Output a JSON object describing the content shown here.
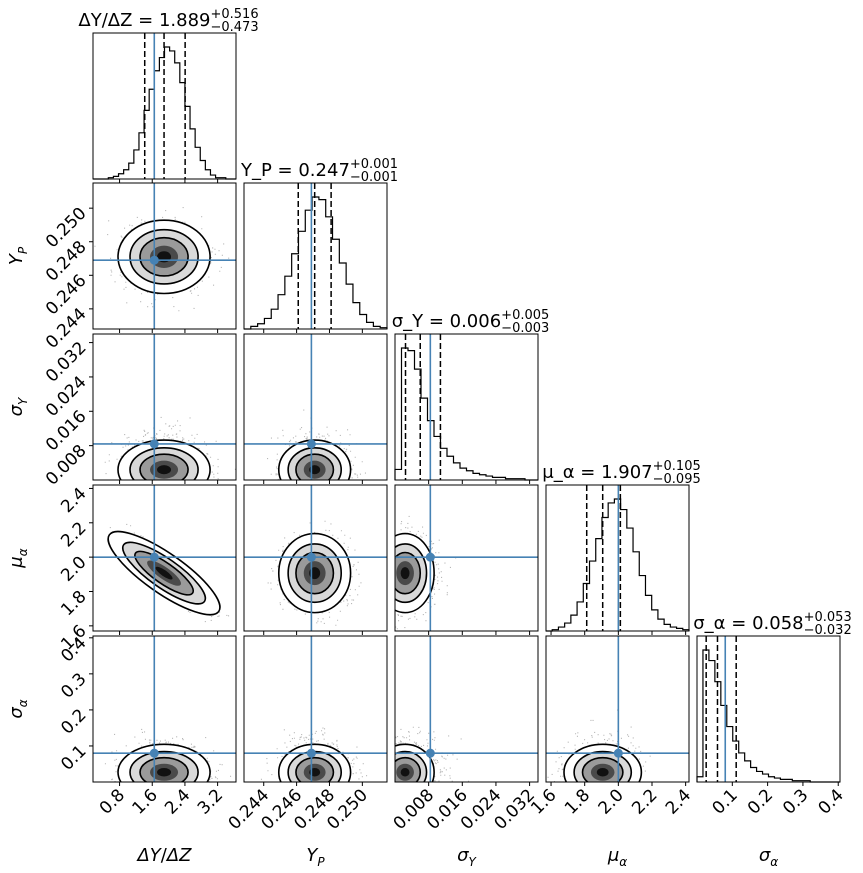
{
  "chart_data": {
    "type": "corner",
    "colors": {
      "truth": "#4682b4",
      "ink": "#000000",
      "scatter": "#000000",
      "background": "#ffffff"
    },
    "parameters": [
      {
        "key": "dY_dZ",
        "label": "ΔY/ΔZ",
        "label_html": "<tspan font-style='italic'>ΔY</tspan>/<tspan font-style='italic'>ΔZ</tspan>",
        "range": [
          0.15,
          3.65
        ],
        "ticks": [
          "0.8",
          "1.6",
          "2.4",
          "3.2"
        ],
        "tick_values": [
          0.8,
          1.6,
          2.4,
          3.2
        ],
        "truth": 1.65,
        "median": 1.889,
        "q_low": 1.416,
        "q_high": 2.405,
        "sigma": 0.49,
        "title_main": "ΔY/ΔZ = 1.889",
        "title_sup": "+0.516",
        "title_sub": "−0.473",
        "hist": [
          0,
          0,
          0,
          1,
          2,
          4,
          7,
          12,
          22,
          35,
          52,
          68,
          82,
          92,
          100,
          97,
          88,
          73,
          55,
          38,
          24,
          14,
          7,
          3,
          1,
          1,
          0,
          0
        ]
      },
      {
        "key": "Y_P",
        "label": "Y_P",
        "label_html": "<tspan font-style='italic'>Y</tspan><tspan font-size='12' dy='5' font-style='italic'>P</tspan>",
        "range": [
          0.2428,
          0.2515
        ],
        "ticks": [
          "0.244",
          "0.246",
          "0.248",
          "0.250"
        ],
        "tick_values": [
          0.244,
          0.246,
          0.248,
          0.25
        ],
        "truth": 0.2469,
        "median": 0.2471,
        "q_low": 0.2461,
        "q_high": 0.2481,
        "sigma": 0.00095,
        "title_main": "Y_P = 0.247",
        "title_sup": "+0.001",
        "title_sub": "−0.001",
        "hist": [
          0,
          2,
          4,
          8,
          15,
          26,
          40,
          57,
          74,
          90,
          100,
          98,
          85,
          68,
          50,
          34,
          20,
          11,
          5,
          2,
          1
        ]
      },
      {
        "key": "sigma_Y",
        "label": "σ_Y",
        "label_html": "<tspan font-style='italic'>σ</tspan><tspan font-size='12' dy='5' font-style='italic'>Y</tspan>",
        "range": [
          0.0,
          0.034
        ],
        "ticks": [
          "0.008",
          "0.016",
          "0.024",
          "0.032"
        ],
        "tick_values": [
          0.008,
          0.016,
          0.024,
          0.032
        ],
        "truth": 0.0084,
        "median": 0.006,
        "q_low": 0.0025,
        "q_high": 0.0108,
        "sigma": 0.004,
        "title_main": "σ_Y = 0.006",
        "title_sup": "+0.005",
        "title_sub": "−0.003",
        "hist": [
          8,
          100,
          98,
          84,
          62,
          45,
          33,
          24,
          18,
          13,
          9,
          7,
          5,
          4,
          3,
          2,
          2,
          1,
          1,
          1,
          0,
          0
        ]
      },
      {
        "key": "mu_alpha",
        "label": "μ_α",
        "label_html": "<tspan font-style='italic'>μ</tspan><tspan font-size='12' dy='5' font-style='italic'>α</tspan>",
        "range": [
          1.57,
          2.42
        ],
        "ticks": [
          "1.6",
          "1.8",
          "2.0",
          "2.2",
          "2.4"
        ],
        "tick_values": [
          1.6,
          1.8,
          2.0,
          2.2,
          2.4
        ],
        "truth": 2.0,
        "median": 1.907,
        "q_low": 1.812,
        "q_high": 2.012,
        "sigma": 0.1,
        "title_main": "μ_α = 1.907",
        "title_sup": "+0.105",
        "title_sub": "−0.095",
        "hist": [
          0,
          1,
          3,
          6,
          12,
          22,
          36,
          53,
          70,
          86,
          97,
          100,
          92,
          78,
          60,
          42,
          27,
          16,
          9,
          5,
          3,
          2,
          1
        ]
      },
      {
        "key": "sigma_alpha",
        "label": "σ_α",
        "label_html": "<tspan font-style='italic'>σ</tspan><tspan font-size='12' dy='5' font-style='italic'>α</tspan>",
        "range": [
          0.0,
          0.405
        ],
        "ticks": [
          "0.1",
          "0.2",
          "0.3",
          "0.4"
        ],
        "tick_values": [
          0.1,
          0.2,
          0.3,
          0.4
        ],
        "truth": 0.08,
        "median": 0.058,
        "q_low": 0.026,
        "q_high": 0.111,
        "sigma": 0.045,
        "title_main": "σ_α = 0.058",
        "title_sup": "+0.053",
        "title_sub": "−0.032",
        "hist": [
          4,
          100,
          92,
          76,
          58,
          42,
          31,
          22,
          16,
          11,
          8,
          6,
          4,
          3,
          2,
          2,
          1,
          1,
          1,
          0,
          0,
          0,
          0,
          0
        ]
      }
    ],
    "correlations": {
      "3_0": -0.9
    },
    "notes": "Corner plot of posterior samples with 1D marginal histograms (diagonal, dashed lines at 16/50/84 percentiles), 2D density contours + scatter (lower triangle), and truth values (blue lines/markers)."
  }
}
